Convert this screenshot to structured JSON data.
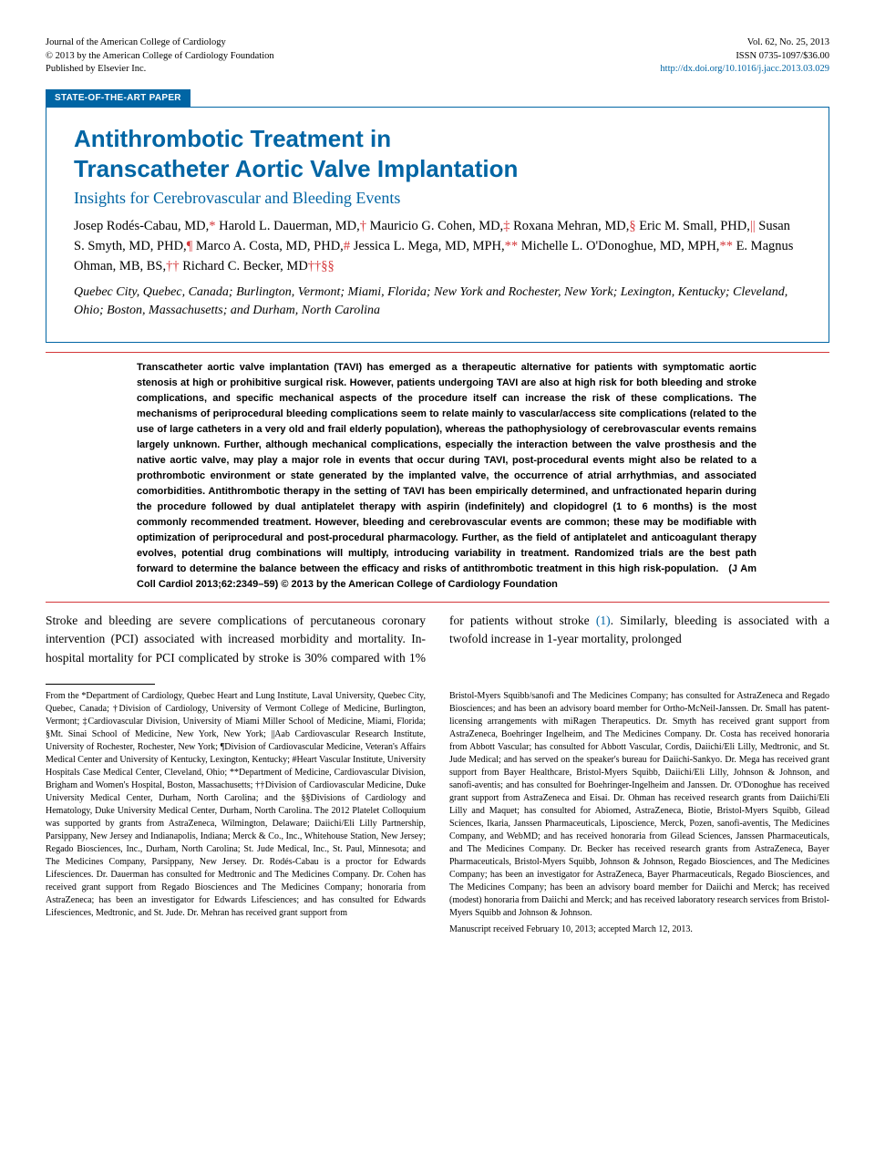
{
  "header": {
    "journal": "Journal of the American College of Cardiology",
    "copyright": "© 2013 by the American College of Cardiology Foundation",
    "publisher": "Published by Elsevier Inc.",
    "volume": "Vol. 62, No. 25, 2013",
    "issn": "ISSN 0735-1097/$36.00",
    "doi": "http://dx.doi.org/10.1016/j.jacc.2013.03.029"
  },
  "badge": "STATE-OF-THE-ART PAPER",
  "title_line1": "Antithrombotic Treatment in",
  "title_line2": "Transcatheter Aortic Valve Implantation",
  "subtitle": "Insights for Cerebrovascular and Bleeding Events",
  "authors_html": "Josep Rodés-Cabau, MD,<span class='marker'>*</span> Harold L. Dauerman, MD,<span class='marker'>†</span> Mauricio G. Cohen, MD,<span class='marker'>‡</span> Roxana Mehran, MD,<span class='marker'>§</span> Eric M. Small, PHD,<span class='marker'>||</span> Susan S. Smyth, MD, PHD,<span class='marker'>¶</span> Marco A. Costa, MD, PHD,<span class='marker'>#</span> Jessica L. Mega, MD, MPH,<span class='marker'>**</span> Michelle L. O'Donoghue, MD, MPH,<span class='marker'>**</span> E. Magnus Ohman, MB, BS,<span class='marker'>††</span> Richard C. Becker, MD<span class='marker'>††§§</span>",
  "locations": "Quebec City, Quebec, Canada; Burlington, Vermont; Miami, Florida; New York and Rochester, New York; Lexington, Kentucky; Cleveland, Ohio; Boston, Massachusetts; and Durham, North Carolina",
  "abstract": "Transcatheter aortic valve implantation (TAVI) has emerged as a therapeutic alternative for patients with symptomatic aortic stenosis at high or prohibitive surgical risk. However, patients undergoing TAVI are also at high risk for both bleeding and stroke complications, and specific mechanical aspects of the procedure itself can increase the risk of these complications. The mechanisms of periprocedural bleeding complications seem to relate mainly to vascular/access site complications (related to the use of large catheters in a very old and frail elderly population), whereas the pathophysiology of cerebrovascular events remains largely unknown. Further, although mechanical complications, especially the interaction between the valve prosthesis and the native aortic valve, may play a major role in events that occur during TAVI, post-procedural events might also be related to a prothrombotic environment or state generated by the implanted valve, the occurrence of atrial arrhythmias, and associated comorbidities. Antithrombotic therapy in the setting of TAVI has been empirically determined, and unfractionated heparin during the procedure followed by dual antiplatelet therapy with aspirin (indefinitely) and clopidogrel (1 to 6 months) is the most commonly recommended treatment. However, bleeding and cerebrovascular events are common; these may be modifiable with optimization of periprocedural and post-procedural pharmacology. Further, as the field of antiplatelet and anticoagulant therapy evolves, potential drug combinations will multiply, introducing variability in treatment. Randomized trials are the best path forward to determine the balance between the efficacy and risks of antithrombotic treatment in this high risk-population. (J Am Coll Cardiol 2013;62:2349–59) © 2013 by the American College of Cardiology Foundation",
  "body": {
    "col1": "Stroke and bleeding are severe complications of percutaneous coronary intervention (PCI) associated with increased morbidity and mortality. In-hospital mortality for PCI",
    "col2_pre": "complicated by stroke is 30% compared with 1% for patients without stroke ",
    "col2_ref": "(1)",
    "col2_post": ". Similarly, bleeding is associated with a twofold increase in 1-year mortality, prolonged"
  },
  "footnotes": {
    "left": "From the *Department of Cardiology, Quebec Heart and Lung Institute, Laval University, Quebec City, Quebec, Canada; †Division of Cardiology, University of Vermont College of Medicine, Burlington, Vermont; ‡Cardiovascular Division, University of Miami Miller School of Medicine, Miami, Florida; §Mt. Sinai School of Medicine, New York, New York; ||Aab Cardiovascular Research Institute, University of Rochester, Rochester, New York; ¶Division of Cardiovascular Medicine, Veteran's Affairs Medical Center and University of Kentucky, Lexington, Kentucky; #Heart Vascular Institute, University Hospitals Case Medical Center, Cleveland, Ohio; **Department of Medicine, Cardiovascular Division, Brigham and Women's Hospital, Boston, Massachusetts; ††Division of Cardiovascular Medicine, Duke University Medical Center, Durham, North Carolina; and the §§Divisions of Cardiology and Hematology, Duke University Medical Center, Durham, North Carolina. The 2012 Platelet Colloquium was supported by grants from AstraZeneca, Wilmington, Delaware; Daiichi/Eli Lilly Partnership, Parsippany, New Jersey and Indianapolis, Indiana; Merck & Co., Inc., Whitehouse Station, New Jersey; Regado Biosciences, Inc., Durham, North Carolina; St. Jude Medical, Inc., St. Paul, Minnesota; and The Medicines Company, Parsippany, New Jersey. Dr. Rodés-Cabau is a proctor for Edwards Lifesciences. Dr. Dauerman has consulted for Medtronic and The Medicines Company. Dr. Cohen has received grant support from Regado Biosciences and The Medicines Company; honoraria from AstraZeneca; has been an investigator for Edwards Lifesciences; and has consulted for Edwards Lifesciences, Medtronic, and St. Jude. Dr. Mehran has received grant support from",
    "right": "Bristol-Myers Squibb/sanofi and The Medicines Company; has consulted for AstraZeneca and Regado Biosciences; and has been an advisory board member for Ortho-McNeil-Janssen. Dr. Small has patent-licensing arrangements with miRagen Therapeutics. Dr. Smyth has received grant support from AstraZeneca, Boehringer Ingelheim, and The Medicines Company. Dr. Costa has received honoraria from Abbott Vascular; has consulted for Abbott Vascular, Cordis, Daiichi/Eli Lilly, Medtronic, and St. Jude Medical; and has served on the speaker's bureau for Daiichi-Sankyo. Dr. Mega has received grant support from Bayer Healthcare, Bristol-Myers Squibb, Daiichi/Eli Lilly, Johnson & Johnson, and sanofi-aventis; and has consulted for Boehringer-Ingelheim and Janssen. Dr. O'Donoghue has received grant support from AstraZeneca and Eisai. Dr. Ohman has received research grants from Daiichi/Eli Lilly and Maquet; has consulted for Abiomed, AstraZeneca, Biotie, Bristol-Myers Squibb, Gilead Sciences, Ikaria, Janssen Pharmaceuticals, Liposcience, Merck, Pozen, sanofi-aventis, The Medicines Company, and WebMD; and has received honoraria from Gilead Sciences, Janssen Pharmaceuticals, and The Medicines Company. Dr. Becker has received research grants from AstraZeneca, Bayer Pharmaceuticals, Bristol-Myers Squibb, Johnson & Johnson, Regado Biosciences, and The Medicines Company; has been an investigator for AstraZeneca, Bayer Pharmaceuticals, Regado Biosciences, and The Medicines Company; has been an advisory board member for Daiichi and Merck; has received (modest) honoraria from Daiichi and Merck; and has received laboratory research services from Bristol-Myers Squibb and Johnson & Johnson.",
    "received": "Manuscript received February 10, 2013; accepted March 12, 2013."
  },
  "colors": {
    "brand_blue": "#0065a4",
    "accent_red": "#d4373a"
  }
}
